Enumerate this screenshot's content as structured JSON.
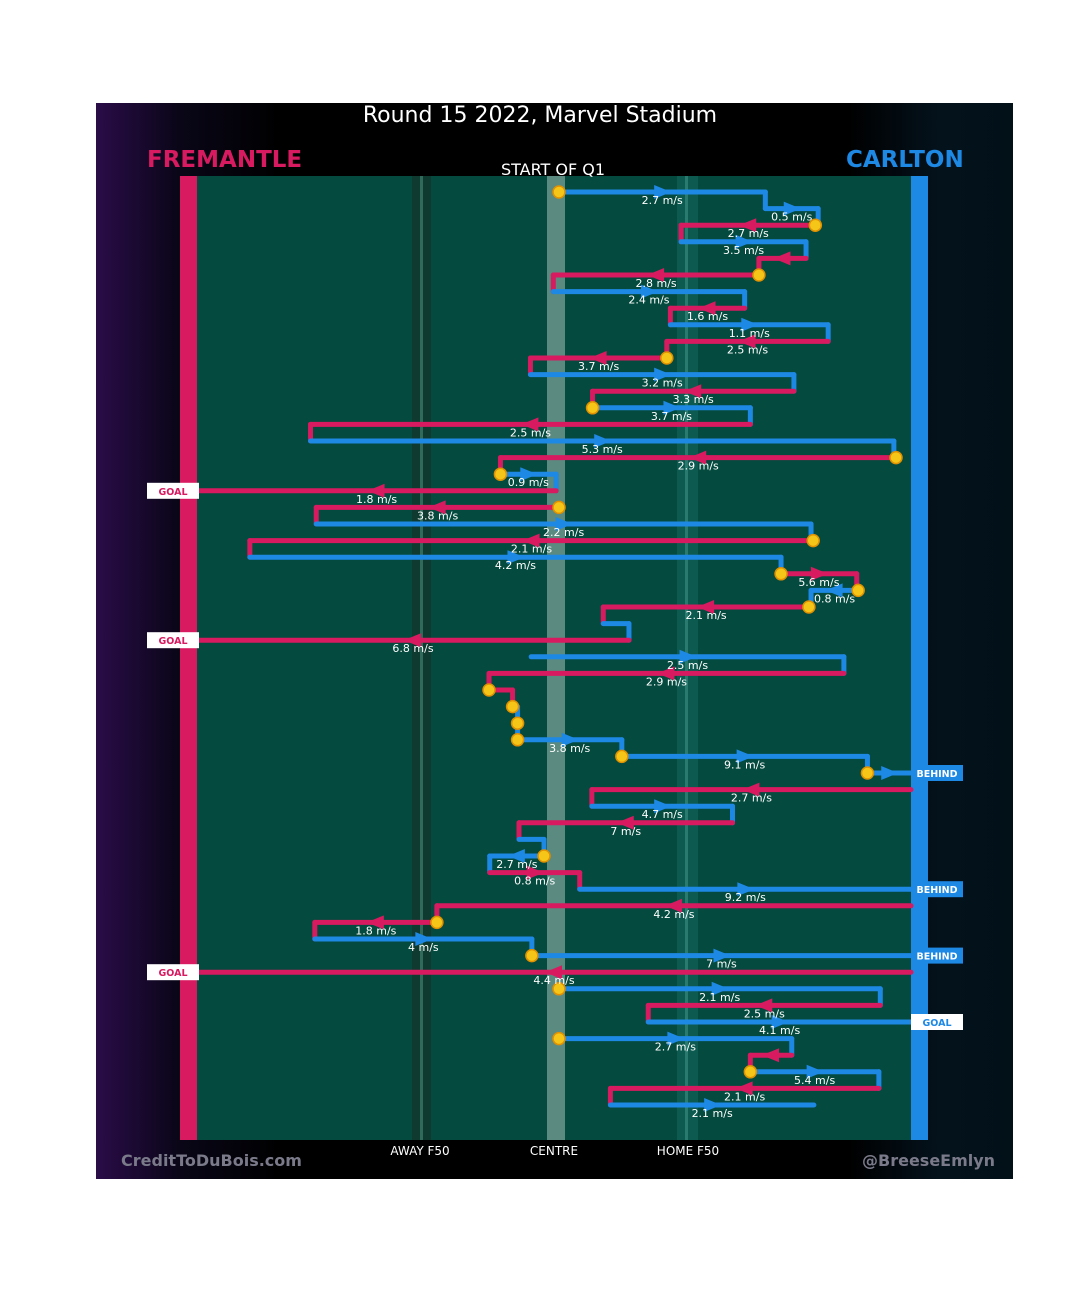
{
  "colors": {
    "home": "#d81b60",
    "away": "#1e88e5",
    "field": "#044a3e",
    "marker": "#f5c518",
    "marker_edge": "#e09000"
  },
  "chart_data": {
    "type": "line",
    "title": "Round 15 2022, Marvel Stadium",
    "subtitle": "START OF Q1",
    "home_team": "FREMANTLE",
    "away_team": "CARLTON",
    "xlabel": "",
    "ylabel": "",
    "axis_ticks": [
      "AWAY F50",
      "CENTRE",
      "HOME F50"
    ],
    "credits": [
      "CreditToDuBois.com",
      "@BreeseEmlyn"
    ],
    "legend": "none",
    "grid": "off",
    "note": "Each segment is one chain of possession; x runs from FREMANTLE end (0) to CARLTON end (100), centre = 50.",
    "segments": [
      {
        "team": "away",
        "x0": 50.7,
        "x1": 79.6,
        "speed": "2.7 m/s",
        "start_marker": true
      },
      {
        "team": "away",
        "x0": 79.6,
        "x1": 87.0,
        "speed": "0.5 m/s"
      },
      {
        "team": "home",
        "x0": 86.6,
        "x1": 67.8,
        "speed": "2.7 m/s",
        "start_marker": true
      },
      {
        "team": "away",
        "x0": 67.8,
        "x1": 85.3,
        "speed": "3.5 m/s"
      },
      {
        "team": "home",
        "x0": 85.3,
        "x1": 78.7,
        "speed": ""
      },
      {
        "team": "home",
        "x0": 78.7,
        "x1": 49.9,
        "speed": "2.8 m/s",
        "start_marker": true
      },
      {
        "team": "away",
        "x0": 49.9,
        "x1": 76.7,
        "speed": "2.4 m/s"
      },
      {
        "team": "home",
        "x0": 76.7,
        "x1": 66.3,
        "speed": "1.6 m/s"
      },
      {
        "team": "away",
        "x0": 66.3,
        "x1": 88.4,
        "speed": "1.1 m/s"
      },
      {
        "team": "home",
        "x0": 88.4,
        "x1": 65.8,
        "speed": "2.5 m/s"
      },
      {
        "team": "home",
        "x0": 65.8,
        "x1": 46.7,
        "speed": "3.7 m/s",
        "start_marker": true
      },
      {
        "team": "away",
        "x0": 46.7,
        "x1": 83.6,
        "speed": "3.2 m/s"
      },
      {
        "team": "home",
        "x0": 83.6,
        "x1": 55.4,
        "speed": "3.3 m/s"
      },
      {
        "team": "away",
        "x0": 55.4,
        "x1": 77.5,
        "speed": "3.7 m/s",
        "start_marker": true
      },
      {
        "team": "home",
        "x0": 77.5,
        "x1": 15.9,
        "speed": "2.5 m/s"
      },
      {
        "team": "away",
        "x0": 15.9,
        "x1": 97.6,
        "speed": "5.3 m/s"
      },
      {
        "team": "home",
        "x0": 97.9,
        "x1": 42.5,
        "speed": "2.9 m/s",
        "start_marker": true
      },
      {
        "team": "away",
        "x0": 42.5,
        "x1": 50.3,
        "speed": "0.9 m/s",
        "start_marker": true
      },
      {
        "team": "home",
        "x0": 50.3,
        "x1": 0.0,
        "speed": "1.8 m/s",
        "outcome": "GOAL"
      },
      {
        "team": "home",
        "x0": 50.7,
        "x1": 16.7,
        "speed": "3.8 m/s",
        "start_marker": true
      },
      {
        "team": "away",
        "x0": 16.7,
        "x1": 86.0,
        "speed": "2.2 m/s"
      },
      {
        "team": "home",
        "x0": 86.3,
        "x1": 7.4,
        "speed": "2.1 m/s",
        "start_marker": true
      },
      {
        "team": "away",
        "x0": 7.4,
        "x1": 81.8,
        "speed": "4.2 m/s"
      },
      {
        "team": "home",
        "x0": 81.8,
        "x1": 92.4,
        "speed": "5.6 m/s",
        "start_marker": true
      },
      {
        "team": "away",
        "x0": 92.6,
        "x1": 86.0,
        "speed": "0.8 m/s",
        "start_marker": true
      },
      {
        "team": "home",
        "x0": 85.7,
        "x1": 56.9,
        "speed": "2.1 m/s",
        "start_marker": true
      },
      {
        "team": "away",
        "x0": 56.9,
        "x1": 60.5,
        "speed": ""
      },
      {
        "team": "home",
        "x0": 60.5,
        "x1": 0.0,
        "speed": "6.8 m/s",
        "outcome": "GOAL"
      },
      {
        "team": "away",
        "x0": 46.8,
        "x1": 90.6,
        "speed": "2.5 m/s"
      },
      {
        "team": "home",
        "x0": 90.6,
        "x1": 40.9,
        "speed": "2.9 m/s"
      },
      {
        "team": "home",
        "x0": 40.9,
        "x1": 44.2,
        "speed": "",
        "start_marker": true
      },
      {
        "team": "away",
        "x0": 44.2,
        "x1": 44.9,
        "speed": "",
        "start_marker": true
      },
      {
        "team": "away",
        "x0": 44.9,
        "x1": 44.9,
        "speed": "",
        "start_marker": true
      },
      {
        "team": "away",
        "x0": 44.9,
        "x1": 59.5,
        "speed": "3.8 m/s",
        "start_marker": true
      },
      {
        "team": "away",
        "x0": 59.5,
        "x1": 93.9,
        "speed": "9.1 m/s",
        "start_marker": true
      },
      {
        "team": "away",
        "x0": 93.9,
        "x1": 100.0,
        "speed": "",
        "start_marker": true,
        "outcome": "BEHIND"
      },
      {
        "team": "home",
        "x0": 100.0,
        "x1": 55.3,
        "speed": "2.7 m/s"
      },
      {
        "team": "away",
        "x0": 55.3,
        "x1": 75.0,
        "speed": "4.7 m/s"
      },
      {
        "team": "home",
        "x0": 75.0,
        "x1": 45.1,
        "speed": "7 m/s"
      },
      {
        "team": "away",
        "x0": 45.1,
        "x1": 48.6,
        "speed": ""
      },
      {
        "team": "away",
        "x0": 48.6,
        "x1": 41.0,
        "speed": "2.7 m/s",
        "start_marker": true
      },
      {
        "team": "home",
        "x0": 41.0,
        "x1": 53.6,
        "speed": "0.8 m/s"
      },
      {
        "team": "away",
        "x0": 53.6,
        "x1": 100.0,
        "speed": "9.2 m/s",
        "outcome": "BEHIND"
      },
      {
        "team": "home",
        "x0": 100.0,
        "x1": 33.6,
        "speed": "4.2 m/s"
      },
      {
        "team": "home",
        "x0": 33.6,
        "x1": 16.5,
        "speed": "1.8 m/s",
        "start_marker": true
      },
      {
        "team": "away",
        "x0": 16.5,
        "x1": 46.9,
        "speed": "4 m/s"
      },
      {
        "team": "away",
        "x0": 46.9,
        "x1": 100.0,
        "speed": "7 m/s",
        "start_marker": true,
        "outcome": "BEHIND"
      },
      {
        "team": "home",
        "x0": 100.0,
        "x1": 0.0,
        "speed": "4.4 m/s",
        "outcome": "GOAL"
      },
      {
        "team": "away",
        "x0": 50.7,
        "x1": 95.7,
        "speed": "2.1 m/s",
        "start_marker": true
      },
      {
        "team": "home",
        "x0": 95.7,
        "x1": 63.2,
        "speed": "2.5 m/s"
      },
      {
        "team": "away",
        "x0": 63.2,
        "x1": 100.0,
        "speed": "4.1 m/s",
        "outcome": "GOAL"
      },
      {
        "team": "away",
        "x0": 50.7,
        "x1": 83.3,
        "speed": "2.7 m/s",
        "start_marker": true
      },
      {
        "team": "home",
        "x0": 83.3,
        "x1": 77.5,
        "speed": ""
      },
      {
        "team": "away",
        "x0": 77.5,
        "x1": 95.5,
        "speed": "5.4 m/s",
        "start_marker": true
      },
      {
        "team": "home",
        "x0": 95.5,
        "x1": 57.9,
        "speed": "2.1 m/s"
      },
      {
        "team": "away",
        "x0": 57.9,
        "x1": 86.4,
        "speed": "2.1 m/s"
      }
    ]
  }
}
